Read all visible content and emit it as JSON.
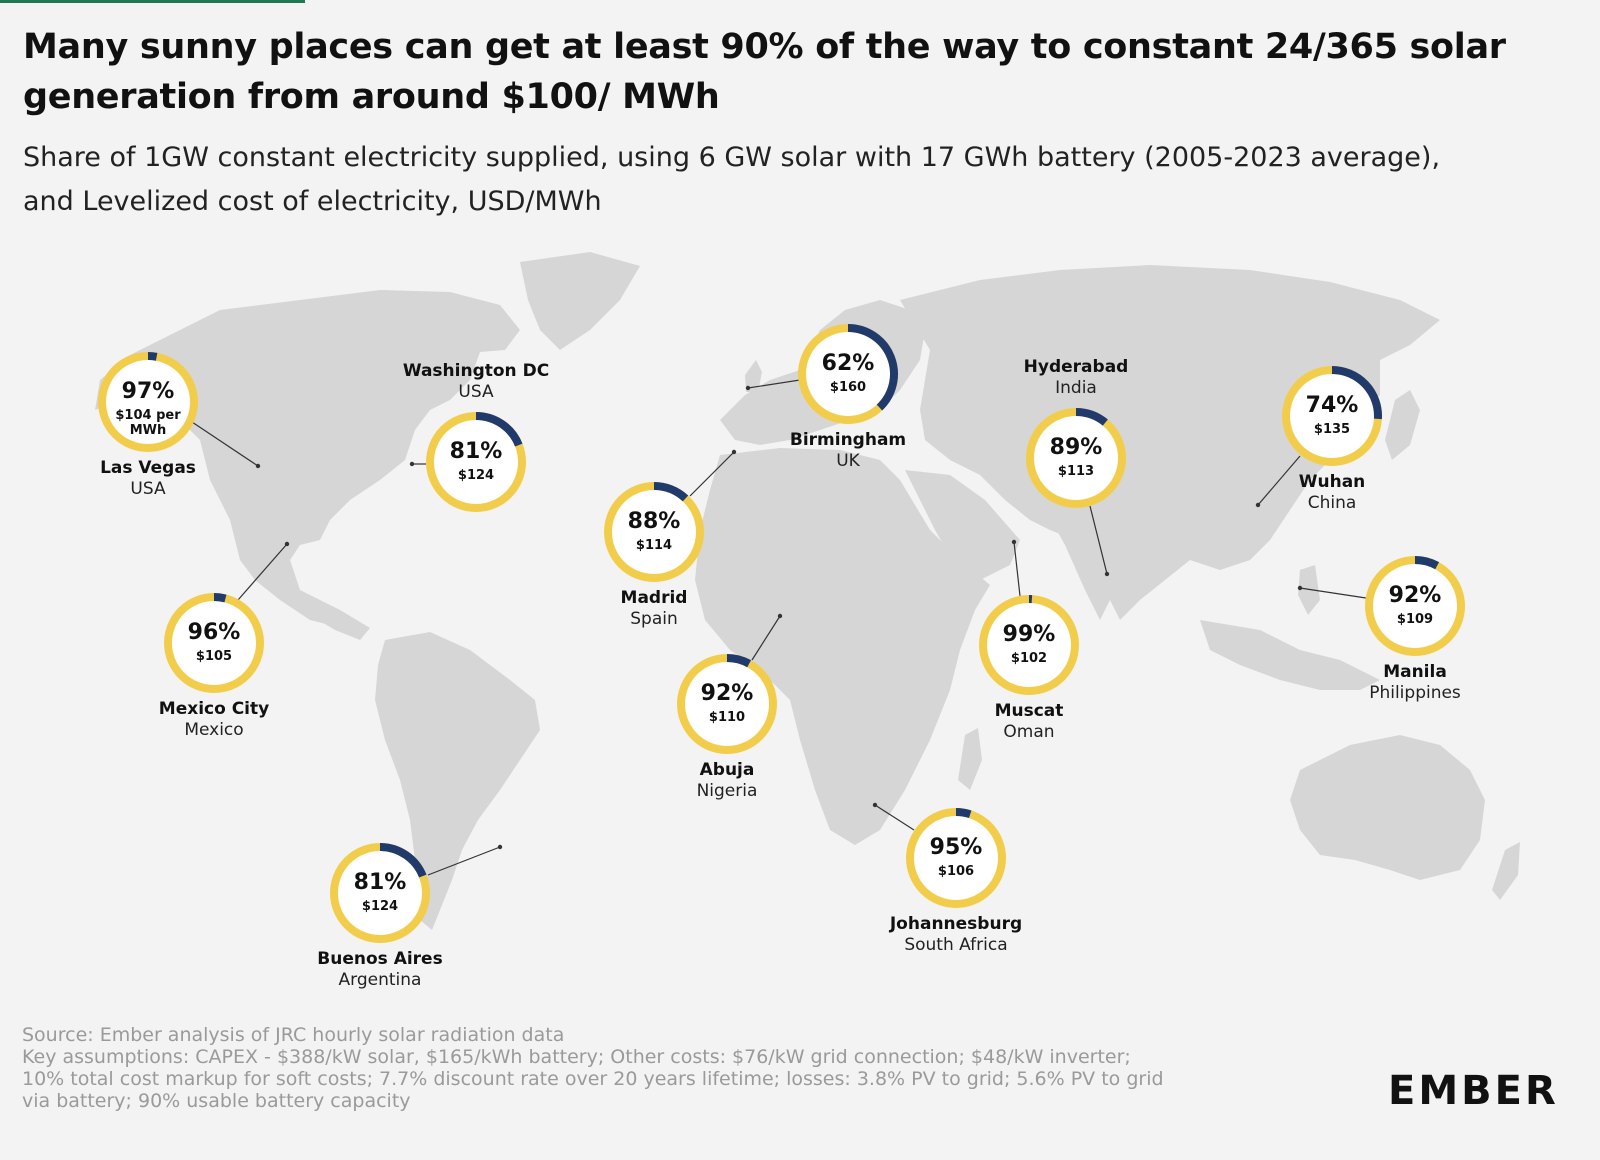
{
  "title": "Many sunny places can get at least 90% of the way to constant 24/365 solar generation from around $100/ MWh",
  "subtitle": "Share of 1GW constant electricity supplied, using 6 GW solar with 17 GWh battery (2005-2023 average), and Levelized cost of electricity, USD/MWh",
  "colors": {
    "share": "#f2cd4c",
    "gap": "#203a6b",
    "ring_bg": "#ffffff",
    "land": "#d6d6d6",
    "background": "#f3f3f3"
  },
  "locations": [
    {
      "id": "las-vegas",
      "city": "Las Vegas",
      "country": "USA",
      "share_pct": 97,
      "pct_label": "97%",
      "cost_usd_mwh": 104,
      "cost_label": "$104 per",
      "cost_label2": "MWh"
    },
    {
      "id": "washington-dc",
      "city": "Washington DC",
      "country": "USA",
      "share_pct": 81,
      "pct_label": "81%",
      "cost_usd_mwh": 124,
      "cost_label": "$124"
    },
    {
      "id": "mexico-city",
      "city": "Mexico City",
      "country": "Mexico",
      "share_pct": 96,
      "pct_label": "96%",
      "cost_usd_mwh": 105,
      "cost_label": "$105"
    },
    {
      "id": "buenos-aires",
      "city": "Buenos Aires",
      "country": "Argentina",
      "share_pct": 81,
      "pct_label": "81%",
      "cost_usd_mwh": 124,
      "cost_label": "$124"
    },
    {
      "id": "madrid",
      "city": "Madrid",
      "country": "Spain",
      "share_pct": 88,
      "pct_label": "88%",
      "cost_usd_mwh": 114,
      "cost_label": "$114"
    },
    {
      "id": "birmingham",
      "city": "Birmingham",
      "country": "UK",
      "share_pct": 62,
      "pct_label": "62%",
      "cost_usd_mwh": 160,
      "cost_label": "$160"
    },
    {
      "id": "abuja",
      "city": "Abuja",
      "country": "Nigeria",
      "share_pct": 92,
      "pct_label": "92%",
      "cost_usd_mwh": 110,
      "cost_label": "$110"
    },
    {
      "id": "johannesburg",
      "city": "Johannesburg",
      "country": "South Africa",
      "share_pct": 95,
      "pct_label": "95%",
      "cost_usd_mwh": 106,
      "cost_label": "$106"
    },
    {
      "id": "muscat",
      "city": "Muscat",
      "country": "Oman",
      "share_pct": 99,
      "pct_label": "99%",
      "cost_usd_mwh": 102,
      "cost_label": "$102"
    },
    {
      "id": "hyderabad",
      "city": "Hyderabad",
      "country": "India",
      "share_pct": 89,
      "pct_label": "89%",
      "cost_usd_mwh": 113,
      "cost_label": "$113"
    },
    {
      "id": "wuhan",
      "city": "Wuhan",
      "country": "China",
      "share_pct": 74,
      "pct_label": "74%",
      "cost_usd_mwh": 135,
      "cost_label": "$135"
    },
    {
      "id": "manila",
      "city": "Manila",
      "country": "Philippines",
      "share_pct": 92,
      "pct_label": "92%",
      "cost_usd_mwh": 109,
      "cost_label": "$109"
    }
  ],
  "footer": {
    "source": "Source: Ember analysis of JRC hourly solar radiation data",
    "assumptions_1": "Key assumptions: CAPEX - $388/kW solar, $165/kWh battery; Other costs: $76/kW grid connection; $48/kW inverter;",
    "assumptions_2": "10% total cost markup for soft costs; 7.7% discount rate over 20 years lifetime; losses: 3.8% PV to grid; 5.6% PV to grid",
    "assumptions_3": "via battery; 90% usable battery capacity"
  },
  "logo": {
    "text": "EMBER"
  }
}
